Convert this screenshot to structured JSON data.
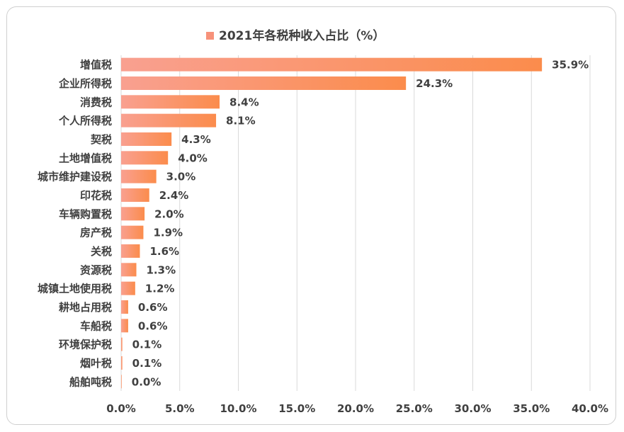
{
  "chart_data": {
    "type": "bar",
    "orientation": "horizontal",
    "title": "",
    "legend": {
      "position": "top",
      "entries": [
        "2021年各税种收入占比（%）"
      ]
    },
    "series": [
      {
        "name": "2021年各税种收入占比（%）",
        "values": [
          35.9,
          24.3,
          8.4,
          8.1,
          4.3,
          4.0,
          3.0,
          2.4,
          2.0,
          1.9,
          1.6,
          1.3,
          1.2,
          0.6,
          0.6,
          0.1,
          0.1,
          0.0
        ],
        "value_labels": [
          "35.9%",
          "24.3%",
          "8.4%",
          "8.1%",
          "4.3%",
          "4.0%",
          "3.0%",
          "2.4%",
          "2.0%",
          "1.9%",
          "1.6%",
          "1.3%",
          "1.2%",
          "0.6%",
          "0.6%",
          "0.1%",
          "0.1%",
          "0.0%"
        ]
      }
    ],
    "categories": [
      "增值税",
      "企业所得税",
      "消费税",
      "个人所得税",
      "契税",
      "土地增值税",
      "城市维护建设税",
      "印花税",
      "车辆购置税",
      "房产税",
      "关税",
      "资源税",
      "城镇土地使用税",
      "耕地占用税",
      "车船税",
      "环境保护税",
      "烟叶税",
      "船舶吨税"
    ],
    "xlim": [
      0,
      40
    ],
    "xticks": [
      "0.0%",
      "5.0%",
      "10.0%",
      "15.0%",
      "20.0%",
      "25.0%",
      "30.0%",
      "35.0%",
      "40.0%"
    ],
    "xlabel": "",
    "ylabel": "",
    "grid": "vertical",
    "colors": {
      "bar_start": "#f9a090",
      "bar_end": "#fb8c4c",
      "legend_swatch": "#f7927a",
      "grid": "#d9d9d9",
      "text": "#404040"
    }
  }
}
